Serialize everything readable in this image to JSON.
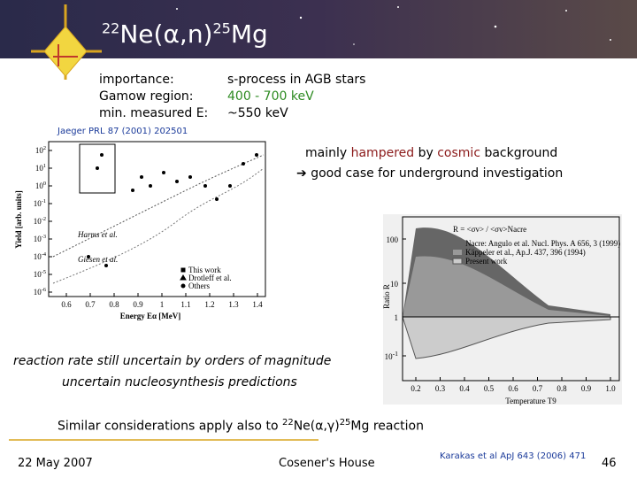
{
  "header": {
    "title": {
      "mass1": "22",
      "reaction": "Ne(α,n)",
      "mass2": "25",
      "element": "Mg"
    }
  },
  "info": {
    "rows": [
      [
        "importance:",
        "s-process in AGB stars"
      ],
      [
        "Gamow region:",
        "400 - 700 keV"
      ],
      [
        "min. measured E:",
        "~550 keV"
      ]
    ],
    "reference": "Jaeger PRL 87 (2001) 202501"
  },
  "note": {
    "line1": {
      "pre": "mainly ",
      "hampered": "hampered",
      "mid": " by ",
      "cosmic": "cosmic",
      "post": " background"
    },
    "line2": "good case for underground investigation"
  },
  "left_plot": {
    "ylabel": "Yield [arb. units]",
    "xlabel": "Energy Eα [MeV]",
    "xticks": [
      "0.6",
      "0.7",
      "0.8",
      "0.9",
      "1",
      "1.1",
      "1.2",
      "1.3",
      "1.4"
    ],
    "yticks": [
      {
        "base": "10",
        "exp": "2"
      },
      {
        "base": "10",
        "exp": "1"
      },
      {
        "base": "10",
        "exp": "0"
      },
      {
        "base": "10",
        "exp": "-1"
      },
      {
        "base": "10",
        "exp": "-2"
      },
      {
        "base": "10",
        "exp": "-3"
      },
      {
        "base": "10",
        "exp": "-4"
      },
      {
        "base": "10",
        "exp": "-5"
      },
      {
        "base": "10",
        "exp": "-6"
      }
    ],
    "annotations": [
      "Harms et al.",
      "Giesen et al."
    ],
    "legend": [
      "This work",
      "Drotleff et al.",
      "Others"
    ]
  },
  "right_plot": {
    "ylabel": "Ratio R",
    "xlabel": "Temperature T9",
    "formula": "R = <σv> / <σv>Nacre",
    "xticks": [
      "0.2",
      "0.3",
      "0.4",
      "0.5",
      "0.6",
      "0.7",
      "0.8",
      "0.9",
      "1.0"
    ],
    "yticks": [
      {
        "base": "100"
      },
      {
        "base": "10"
      },
      {
        "base": "1"
      },
      {
        "base": "10",
        "exp": "-1"
      }
    ],
    "legend": [
      "Nacre: Angulo et al. Nucl. Phys. A 656, 3 (1999)",
      "Käppeler et al., Ap.J. 437, 396 (1994)",
      "Present work"
    ]
  },
  "body": {
    "line1": "reaction rate still uncertain by orders of magnitude",
    "line2": "uncertain nucleosynthesis predictions",
    "line3": {
      "pre": "Similar considerations apply also to ",
      "mass1": "22",
      "reaction": "Ne(α,γ)",
      "mass2": "25",
      "post": "Mg reaction"
    }
  },
  "footer": {
    "date": "22 May 2007",
    "venue": "Cosener's House",
    "citation": "Karakas et al ApJ 643 (2006) 471",
    "page": "46"
  }
}
